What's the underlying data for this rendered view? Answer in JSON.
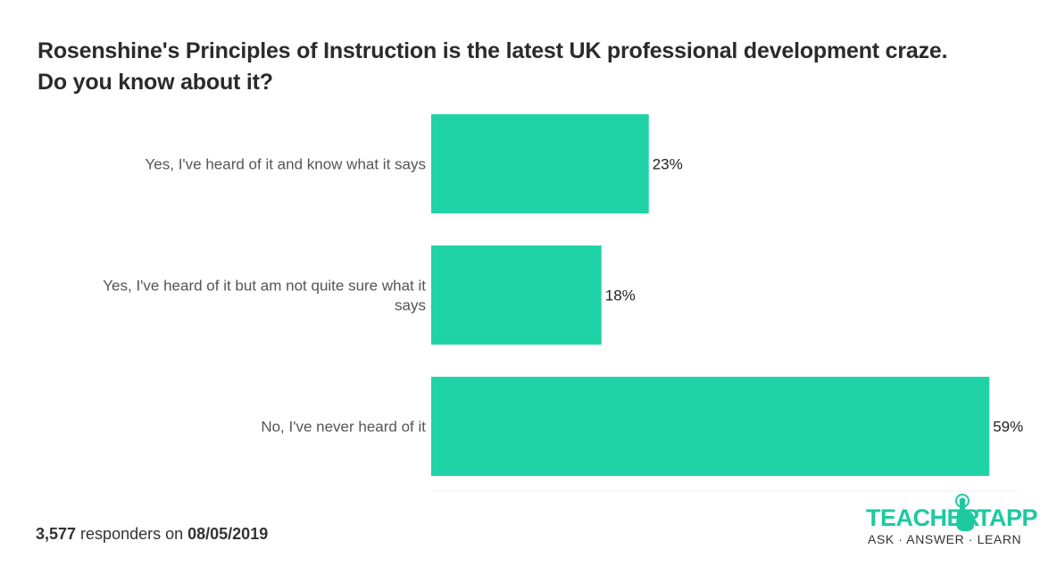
{
  "title_lines": [
    "Rosenshine's Principles of Instruction is the latest UK professional development craze.",
    "Do you know about it?"
  ],
  "chart_data": {
    "type": "bar",
    "orientation": "horizontal",
    "categories": [
      [
        "Yes, I've heard of it and know what it says"
      ],
      [
        "Yes, I've heard of it but am not quite sure what it",
        "says"
      ],
      [
        "No, I've never heard of it"
      ]
    ],
    "values": [
      23,
      18,
      59
    ],
    "value_labels": [
      "23%",
      "18%",
      "59%"
    ],
    "xlim": [
      0,
      62
    ],
    "bar_color": "#1fd3a7",
    "grid": false
  },
  "footer": {
    "count": "3,577",
    "text": " responders on ",
    "date": "08/05/2019"
  },
  "logo": {
    "word_left": "TEACHER",
    "word_right": "TAPP",
    "tagline": "ASK · ANSWER · LEARN",
    "icon": "tapping-hand-icon",
    "color": "#1fc9a0"
  }
}
